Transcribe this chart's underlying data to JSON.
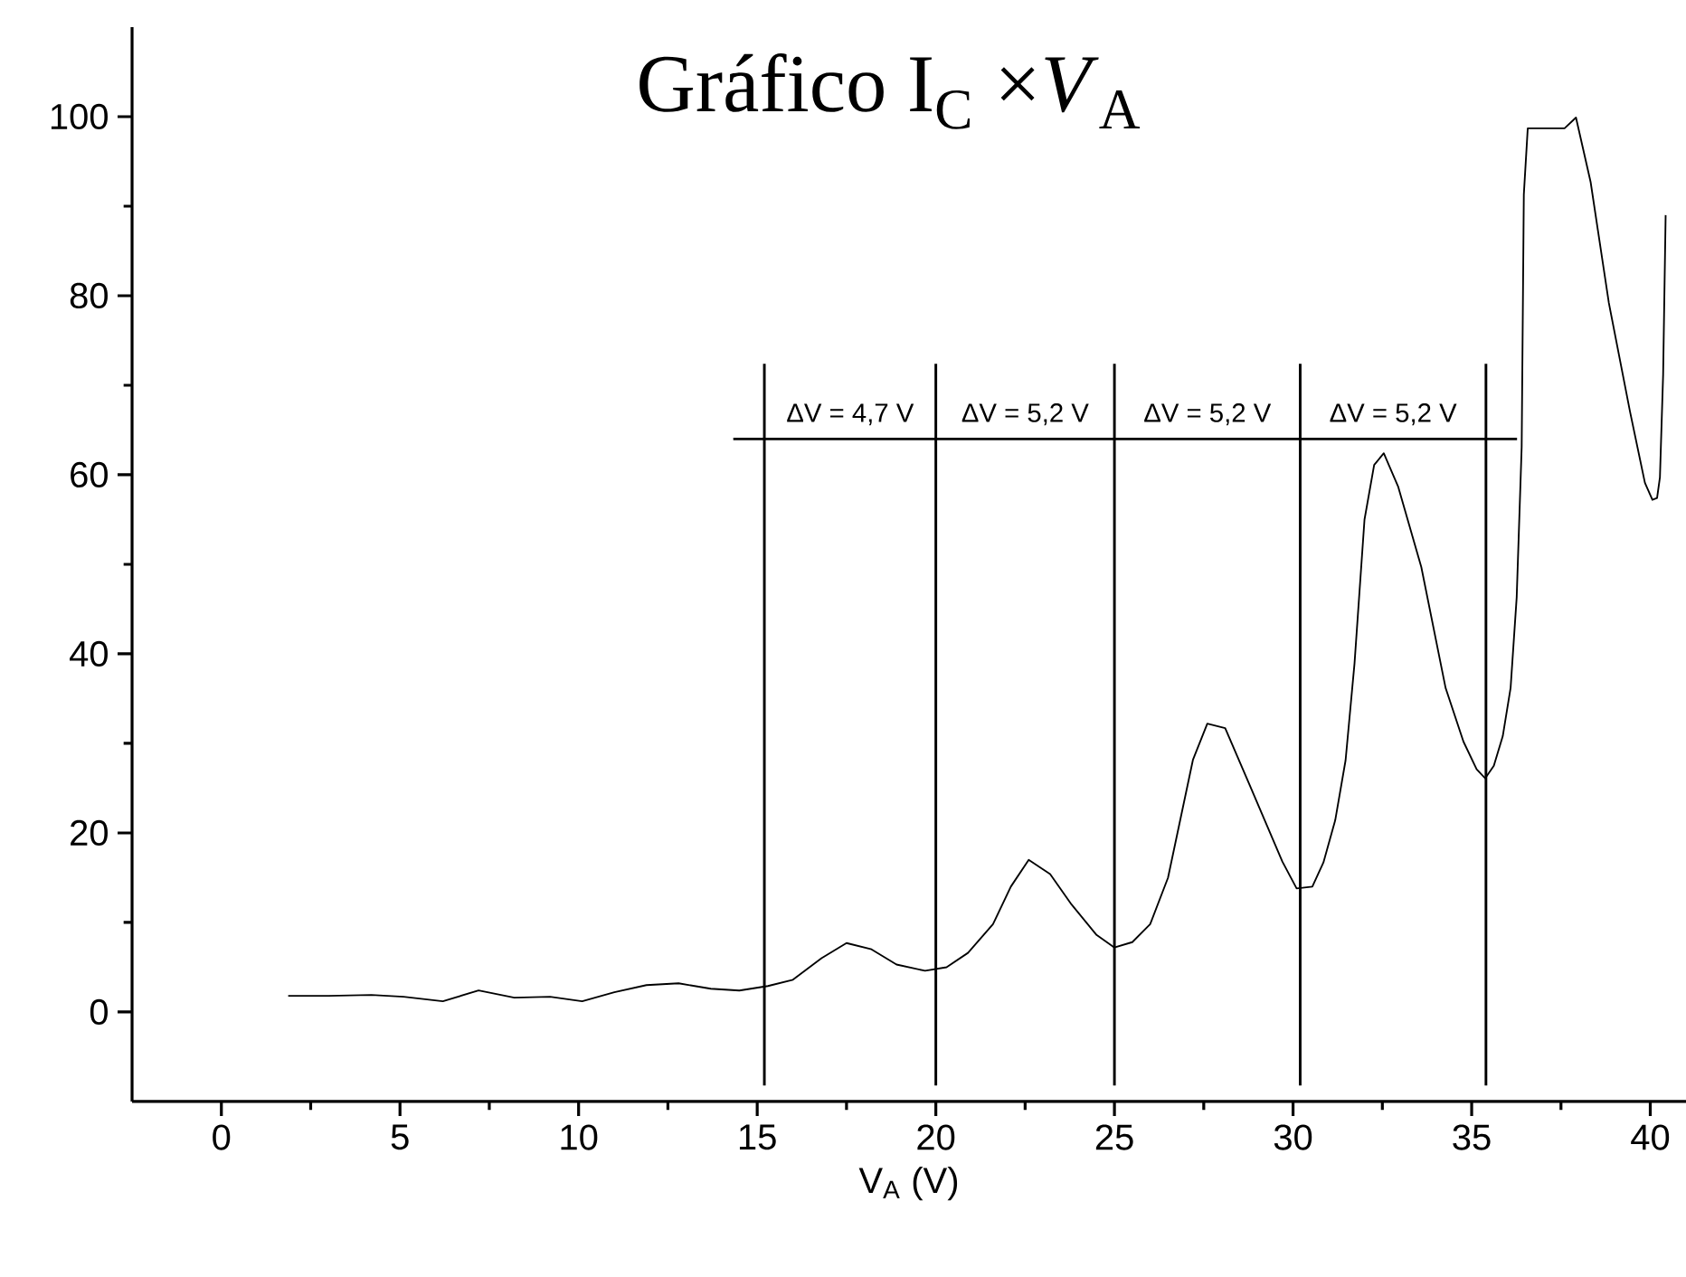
{
  "chart_data": {
    "type": "line",
    "title": "Gráfico I$_{C}$ ×*V*$_{A}$",
    "xlabel": "V$_{A}$ (V)",
    "xlim": [
      -2.5,
      41
    ],
    "ylim": [
      -10,
      110
    ],
    "xticks": [
      0,
      5,
      10,
      15,
      20,
      25,
      30,
      35,
      40
    ],
    "yticks": [
      0,
      20,
      40,
      60,
      80,
      100
    ],
    "grid": false,
    "marker": "none",
    "line_style": "solid",
    "series": [
      {
        "color": "#000000",
        "x": [
          1.87,
          3.0,
          4.2,
          5.1,
          6.2,
          7.2,
          8.2,
          9.2,
          10.1,
          11.0,
          11.9,
          12.8,
          13.7,
          14.5,
          15.3,
          16.0,
          16.8,
          17.5,
          18.2,
          18.9,
          19.7,
          20.3,
          20.9,
          21.6,
          22.1,
          22.6,
          23.2,
          23.8,
          24.5,
          25.0,
          25.5,
          26.0,
          26.5,
          27.2,
          27.6,
          28.1,
          28.8,
          29.7,
          30.1,
          30.54,
          30.85,
          31.18,
          31.47,
          31.72,
          32.0,
          32.27,
          32.54,
          32.94,
          33.59,
          34.27,
          34.77,
          35.14,
          35.38,
          35.62,
          35.87,
          36.09,
          36.26,
          36.4,
          36.46,
          36.57,
          37.6,
          37.92,
          38.33,
          38.84,
          39.43,
          39.85,
          40.06,
          40.19,
          40.27,
          40.36,
          40.43
        ],
        "values": [
          1.8,
          1.8,
          1.9,
          1.7,
          1.2,
          2.4,
          1.6,
          1.7,
          1.2,
          2.2,
          3.0,
          3.2,
          2.6,
          2.4,
          2.9,
          3.6,
          6.0,
          7.7,
          7.0,
          5.3,
          4.6,
          5.0,
          6.6,
          9.8,
          14.0,
          17.0,
          15.4,
          12.0,
          8.6,
          7.2,
          7.8,
          9.8,
          15.0,
          28.2,
          32.2,
          31.7,
          25.2,
          16.8,
          13.8,
          14.0,
          16.7,
          21.4,
          28.1,
          38.9,
          55.0,
          61.1,
          62.4,
          58.7,
          49.7,
          36.2,
          30.2,
          27.1,
          26.1,
          27.5,
          30.8,
          36.2,
          46.3,
          63.1,
          91.3,
          98.7,
          98.7,
          99.9,
          92.7,
          79.2,
          67.1,
          59.1,
          57.2,
          57.4,
          59.7,
          71.2,
          89.0
        ]
      }
    ],
    "ref_lines": [
      {
        "axis": "x",
        "value": 15.2,
        "color": "#000000",
        "line_style": "solid"
      },
      {
        "axis": "x",
        "value": 20.0,
        "color": "#000000",
        "line_style": "solid"
      },
      {
        "axis": "x",
        "value": 25.0,
        "color": "#000000",
        "line_style": "solid"
      },
      {
        "axis": "x",
        "value": 30.2,
        "color": "#000000",
        "line_style": "solid"
      },
      {
        "axis": "x",
        "value": 35.4,
        "color": "#000000",
        "line_style": "solid"
      },
      {
        "axis": "y",
        "value": 64,
        "color": "#000000",
        "line_style": "solid"
      }
    ],
    "annotations": [
      "ΔV = 4,7 V",
      "ΔV = 5,2 V",
      "ΔV = 5,2 V",
      "ΔV = 5,2 V"
    ]
  }
}
